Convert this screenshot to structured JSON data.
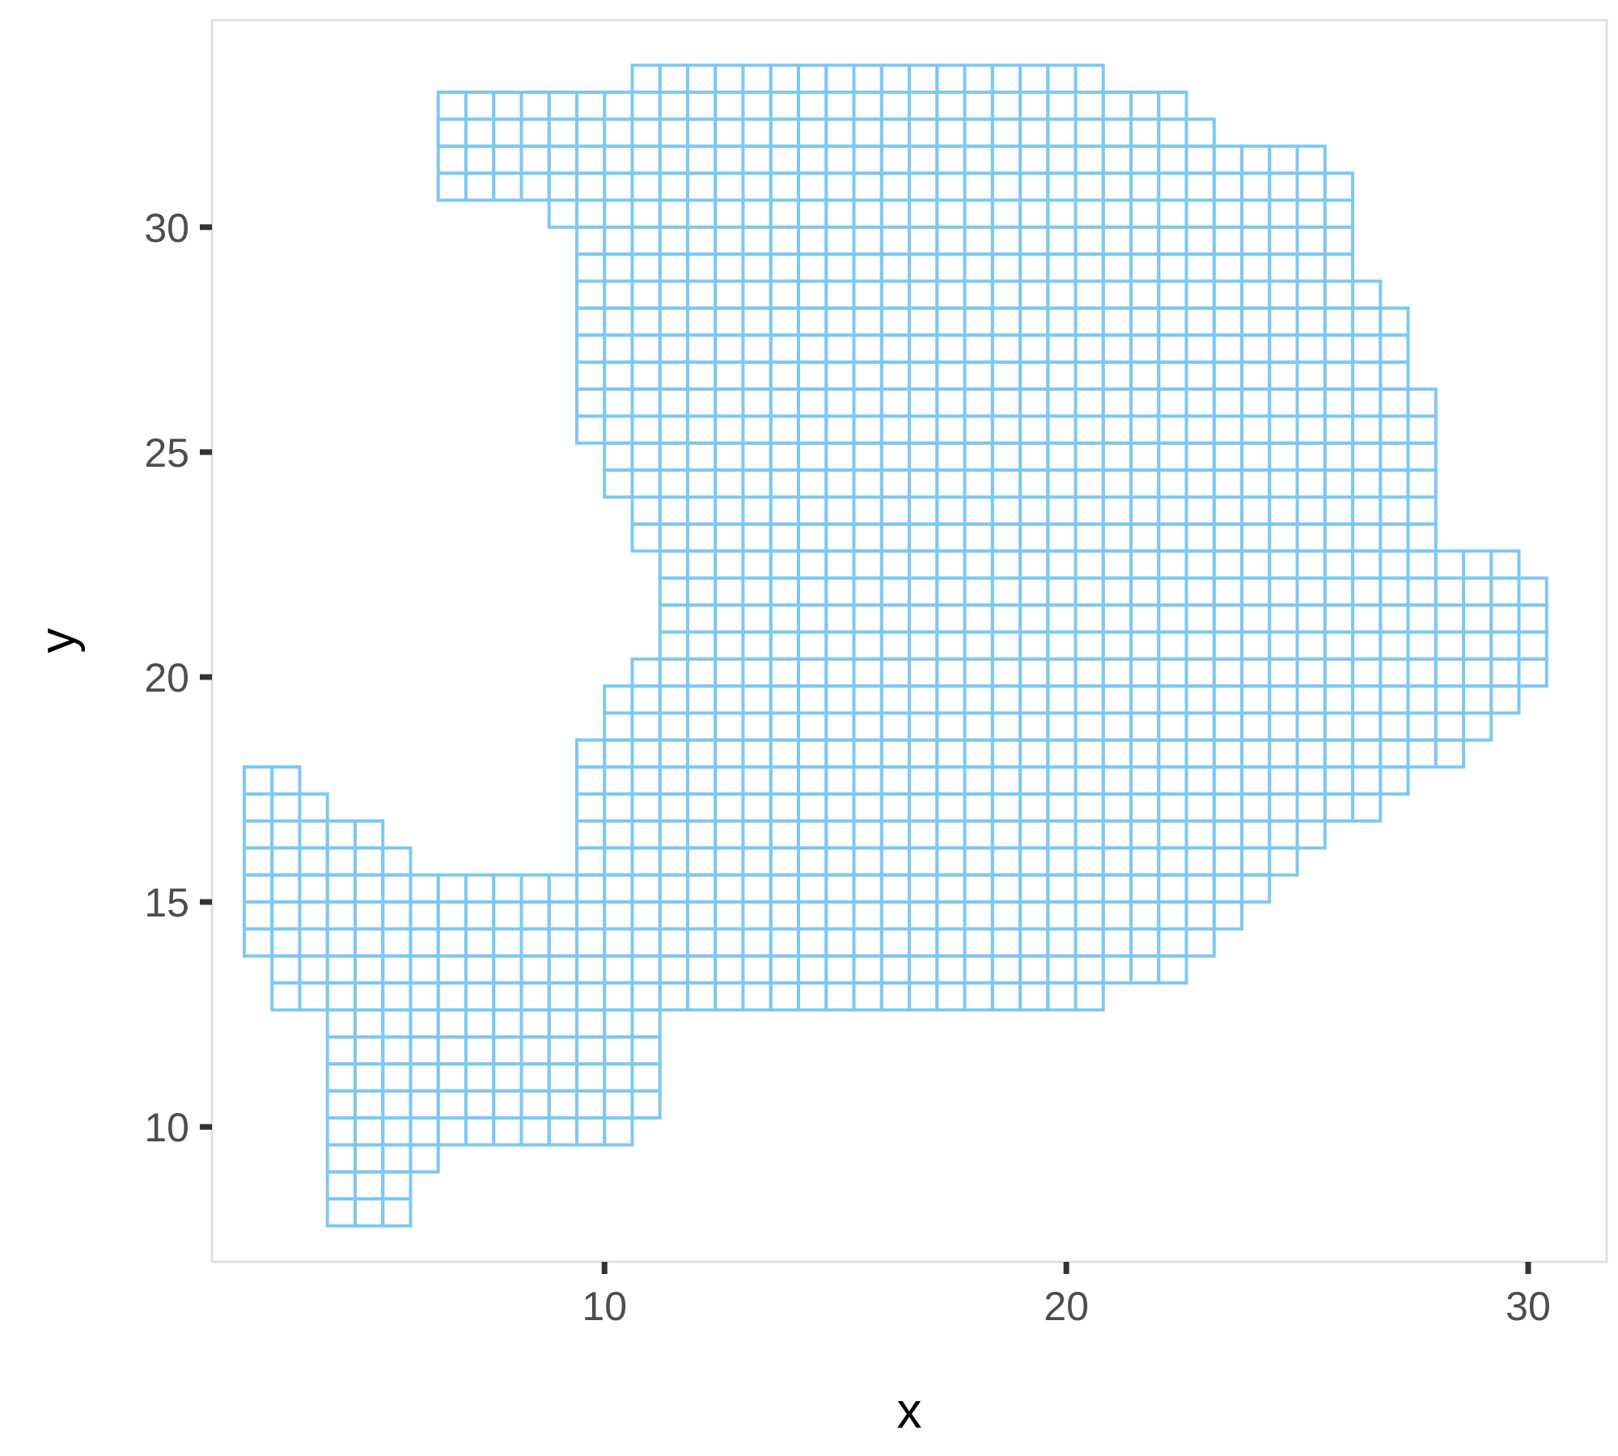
{
  "chart_data": {
    "type": "scatter",
    "marker": "open-square",
    "title": "",
    "xlabel": "x",
    "ylabel": "y",
    "xlim": [
      1.5,
      31.7
    ],
    "ylim": [
      7.0,
      34.6
    ],
    "x_ticks": [
      10,
      20,
      30
    ],
    "y_ticks": [
      10,
      15,
      20,
      25,
      30
    ],
    "x_tick_labels": [
      "10",
      "20",
      "30"
    ],
    "y_tick_labels": [
      "10",
      "15",
      "20",
      "25",
      "30"
    ],
    "grid": false,
    "legend": "none",
    "cell_size": 0.6,
    "rows": [
      {
        "y": 33.3,
        "x_ranges": [
          [
            10.9,
            20.5
          ]
        ]
      },
      {
        "y": 32.7,
        "x_ranges": [
          [
            6.7,
            22.3
          ]
        ]
      },
      {
        "y": 32.1,
        "x_ranges": [
          [
            6.7,
            22.9
          ]
        ]
      },
      {
        "y": 31.5,
        "x_ranges": [
          [
            6.7,
            25.3
          ]
        ]
      },
      {
        "y": 30.9,
        "x_ranges": [
          [
            6.7,
            25.9
          ]
        ]
      },
      {
        "y": 30.3,
        "x_ranges": [
          [
            9.1,
            25.9
          ]
        ]
      },
      {
        "y": 29.7,
        "x_ranges": [
          [
            9.7,
            25.9
          ]
        ]
      },
      {
        "y": 29.1,
        "x_ranges": [
          [
            9.7,
            25.9
          ]
        ]
      },
      {
        "y": 28.5,
        "x_ranges": [
          [
            9.7,
            26.5
          ]
        ]
      },
      {
        "y": 27.9,
        "x_ranges": [
          [
            9.7,
            27.1
          ]
        ]
      },
      {
        "y": 27.3,
        "x_ranges": [
          [
            9.7,
            27.1
          ]
        ]
      },
      {
        "y": 26.7,
        "x_ranges": [
          [
            9.7,
            27.1
          ]
        ]
      },
      {
        "y": 26.1,
        "x_ranges": [
          [
            9.7,
            27.7
          ]
        ]
      },
      {
        "y": 25.5,
        "x_ranges": [
          [
            9.7,
            27.7
          ]
        ]
      },
      {
        "y": 24.9,
        "x_ranges": [
          [
            10.3,
            27.7
          ]
        ]
      },
      {
        "y": 24.3,
        "x_ranges": [
          [
            10.3,
            27.7
          ]
        ]
      },
      {
        "y": 23.7,
        "x_ranges": [
          [
            10.9,
            27.7
          ]
        ]
      },
      {
        "y": 23.1,
        "x_ranges": [
          [
            10.9,
            27.7
          ]
        ]
      },
      {
        "y": 22.5,
        "x_ranges": [
          [
            11.5,
            29.5
          ]
        ]
      },
      {
        "y": 21.9,
        "x_ranges": [
          [
            11.5,
            30.1
          ]
        ]
      },
      {
        "y": 21.3,
        "x_ranges": [
          [
            11.5,
            30.1
          ]
        ]
      },
      {
        "y": 20.7,
        "x_ranges": [
          [
            11.5,
            30.1
          ]
        ]
      },
      {
        "y": 20.1,
        "x_ranges": [
          [
            10.9,
            30.1
          ]
        ]
      },
      {
        "y": 19.5,
        "x_ranges": [
          [
            10.3,
            29.5
          ]
        ]
      },
      {
        "y": 18.9,
        "x_ranges": [
          [
            10.3,
            28.9
          ]
        ]
      },
      {
        "y": 18.3,
        "x_ranges": [
          [
            9.7,
            28.3
          ]
        ]
      },
      {
        "y": 17.7,
        "x_ranges": [
          [
            2.5,
            3.1
          ],
          [
            9.7,
            27.1
          ]
        ]
      },
      {
        "y": 17.1,
        "x_ranges": [
          [
            2.5,
            3.7
          ],
          [
            9.7,
            26.5
          ]
        ]
      },
      {
        "y": 16.5,
        "x_ranges": [
          [
            2.5,
            4.9
          ],
          [
            9.7,
            25.3
          ]
        ]
      },
      {
        "y": 15.9,
        "x_ranges": [
          [
            2.5,
            5.5
          ],
          [
            9.7,
            24.7
          ]
        ]
      },
      {
        "y": 15.3,
        "x_ranges": [
          [
            2.5,
            24.1
          ]
        ]
      },
      {
        "y": 14.7,
        "x_ranges": [
          [
            2.5,
            23.5
          ]
        ]
      },
      {
        "y": 14.1,
        "x_ranges": [
          [
            2.5,
            22.9
          ]
        ]
      },
      {
        "y": 13.5,
        "x_ranges": [
          [
            3.1,
            22.3
          ]
        ]
      },
      {
        "y": 12.9,
        "x_ranges": [
          [
            3.1,
            20.5
          ]
        ]
      },
      {
        "y": 12.3,
        "x_ranges": [
          [
            4.3,
            10.9
          ]
        ]
      },
      {
        "y": 11.7,
        "x_ranges": [
          [
            4.3,
            10.9
          ]
        ]
      },
      {
        "y": 11.1,
        "x_ranges": [
          [
            4.3,
            10.9
          ]
        ]
      },
      {
        "y": 10.5,
        "x_ranges": [
          [
            4.3,
            10.9
          ]
        ]
      },
      {
        "y": 9.9,
        "x_ranges": [
          [
            4.3,
            10.3
          ]
        ]
      },
      {
        "y": 9.3,
        "x_ranges": [
          [
            4.3,
            6.1
          ]
        ]
      },
      {
        "y": 8.7,
        "x_ranges": [
          [
            4.3,
            5.5
          ]
        ]
      },
      {
        "y": 8.1,
        "x_ranges": [
          [
            4.3,
            5.5
          ]
        ]
      }
    ],
    "colors": {
      "marker": "#7ec8f2",
      "panel_border": "#e0e0e0",
      "tick": "#333333",
      "tick_label": "#4d4d4d",
      "axis_title": "#000000"
    }
  }
}
